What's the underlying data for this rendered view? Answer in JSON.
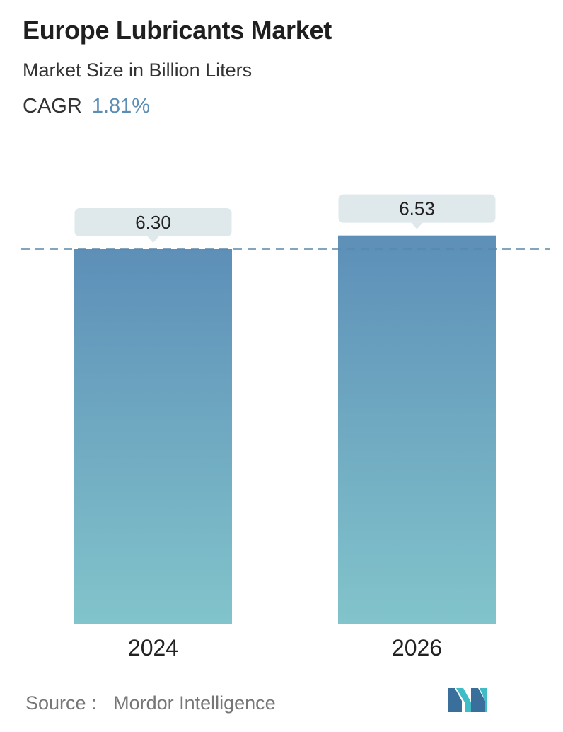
{
  "header": {
    "title": "Europe Lubricants Market",
    "subtitle": "Market Size in Billion Liters",
    "cagr_label": "CAGR",
    "cagr_value": "1.81%"
  },
  "chart_data": {
    "type": "bar",
    "categories": [
      "2024",
      "2026"
    ],
    "values": [
      6.3,
      6.53
    ],
    "value_labels": [
      "6.30",
      "6.53"
    ],
    "title": "Europe Lubricants Market",
    "ylabel": "",
    "xlabel": "",
    "grid": false,
    "reference_line": 6.3,
    "colors": {
      "bar_top": "#5d8fb8",
      "bar_bottom": "#82c4cb",
      "label_bg": "#dfe8eb",
      "ref_line": "#5b87a8"
    }
  },
  "footer": {
    "source_label": "Source :",
    "source_value": "Mordor Intelligence"
  },
  "logo": {
    "icon": "mordor-intelligence-logo-icon",
    "colors": [
      "#3a6f9b",
      "#3fbcc5"
    ]
  }
}
